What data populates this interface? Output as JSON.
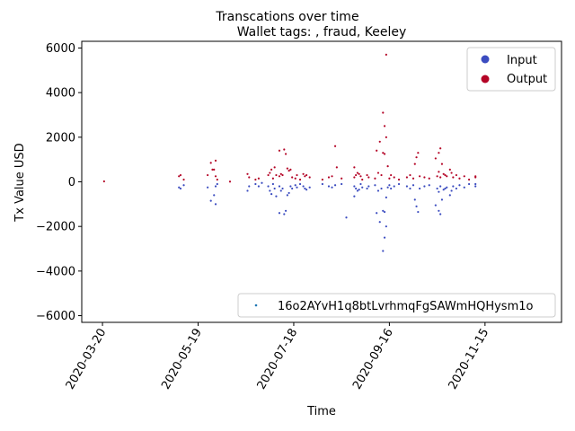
{
  "chart_data": {
    "type": "scatter",
    "suptitle": "Transcations over time",
    "title": "Wallet tags: , fraud, Keeley",
    "xlabel": "Time",
    "ylabel": "Tx Value USD",
    "x_range": [
      "2020-03-07",
      "2021-01-02"
    ],
    "ylim": [
      -6300,
      6300
    ],
    "y_ticks": [
      -6000,
      -4000,
      -2000,
      0,
      2000,
      4000,
      6000
    ],
    "x_ticks": [
      "2020-03-20",
      "2020-05-19",
      "2020-07-18",
      "2020-09-16",
      "2020-11-15"
    ],
    "grid": false,
    "legend_top": {
      "placement": "upper right",
      "entries": [
        {
          "label": "Input",
          "color": "#3b4cc0"
        },
        {
          "label": "Output",
          "color": "#b40426"
        }
      ]
    },
    "legend_bottom": {
      "placement": "lower right",
      "entries": [
        {
          "label": "16o2AYvH1q8btLvrhmqFgSAWmHQHysm1o",
          "color": "#1f77b4"
        }
      ]
    },
    "series": [
      {
        "name": "Input",
        "color": "#3b4cc0",
        "points": [
          [
            "2020-05-07",
            -250
          ],
          [
            "2020-05-08",
            -300
          ],
          [
            "2020-05-10",
            -150
          ],
          [
            "2020-05-25",
            -250
          ],
          [
            "2020-05-27",
            -850
          ],
          [
            "2020-05-29",
            -600
          ],
          [
            "2020-05-30",
            -1000
          ],
          [
            "2020-05-30",
            -200
          ],
          [
            "2020-05-31",
            -100
          ],
          [
            "2020-06-19",
            -400
          ],
          [
            "2020-06-20",
            -200
          ],
          [
            "2020-06-24",
            -100
          ],
          [
            "2020-06-26",
            -200
          ],
          [
            "2020-06-28",
            -50
          ],
          [
            "2020-07-02",
            -200
          ],
          [
            "2020-07-03",
            -400
          ],
          [
            "2020-07-04",
            -550
          ],
          [
            "2020-07-05",
            -100
          ],
          [
            "2020-07-06",
            -300
          ],
          [
            "2020-07-07",
            -650
          ],
          [
            "2020-07-09",
            -1400
          ],
          [
            "2020-07-09",
            -200
          ],
          [
            "2020-07-10",
            -400
          ],
          [
            "2020-07-11",
            -300
          ],
          [
            "2020-07-12",
            -1450
          ],
          [
            "2020-07-13",
            -1300
          ],
          [
            "2020-07-14",
            -600
          ],
          [
            "2020-07-15",
            -500
          ],
          [
            "2020-07-16",
            -200
          ],
          [
            "2020-07-17",
            -300
          ],
          [
            "2020-07-19",
            -150
          ],
          [
            "2020-07-20",
            -250
          ],
          [
            "2020-07-22",
            -100
          ],
          [
            "2020-07-24",
            -200
          ],
          [
            "2020-07-25",
            -300
          ],
          [
            "2020-07-26",
            -350
          ],
          [
            "2020-07-28",
            -250
          ],
          [
            "2020-08-05",
            -100
          ],
          [
            "2020-08-09",
            -200
          ],
          [
            "2020-08-11",
            -250
          ],
          [
            "2020-08-13",
            -150
          ],
          [
            "2020-08-17",
            -100
          ],
          [
            "2020-08-20",
            -1600
          ],
          [
            "2020-08-25",
            -200
          ],
          [
            "2020-08-25",
            -650
          ],
          [
            "2020-08-26",
            -300
          ],
          [
            "2020-08-27",
            -400
          ],
          [
            "2020-08-28",
            -350
          ],
          [
            "2020-08-29",
            -100
          ],
          [
            "2020-08-30",
            -250
          ],
          [
            "2020-09-02",
            -300
          ],
          [
            "2020-09-03",
            -200
          ],
          [
            "2020-09-07",
            -150
          ],
          [
            "2020-09-08",
            -1400
          ],
          [
            "2020-09-09",
            -400
          ],
          [
            "2020-09-10",
            -1800
          ],
          [
            "2020-09-11",
            -300
          ],
          [
            "2020-09-12",
            -3100
          ],
          [
            "2020-09-12",
            -1300
          ],
          [
            "2020-09-13",
            -1350
          ],
          [
            "2020-09-13",
            -2500
          ],
          [
            "2020-09-14",
            -2000
          ],
          [
            "2020-09-14",
            -700
          ],
          [
            "2020-09-15",
            -250
          ],
          [
            "2020-09-16",
            -150
          ],
          [
            "2020-09-17",
            -300
          ],
          [
            "2020-09-19",
            -200
          ],
          [
            "2020-09-22",
            -100
          ],
          [
            "2020-09-27",
            -200
          ],
          [
            "2020-09-29",
            -300
          ],
          [
            "2020-10-01",
            -150
          ],
          [
            "2020-10-02",
            -800
          ],
          [
            "2020-10-03",
            -1100
          ],
          [
            "2020-10-04",
            -1350
          ],
          [
            "2020-10-05",
            -300
          ],
          [
            "2020-10-08",
            -200
          ],
          [
            "2020-10-11",
            -150
          ],
          [
            "2020-10-15",
            -1050
          ],
          [
            "2020-10-16",
            -300
          ],
          [
            "2020-10-17",
            -450
          ],
          [
            "2020-10-17",
            -1300
          ],
          [
            "2020-10-18",
            -1450
          ],
          [
            "2020-10-18",
            -200
          ],
          [
            "2020-10-19",
            -800
          ],
          [
            "2020-10-20",
            -350
          ],
          [
            "2020-10-21",
            -300
          ],
          [
            "2020-10-22",
            -250
          ],
          [
            "2020-10-24",
            -600
          ],
          [
            "2020-10-25",
            -400
          ],
          [
            "2020-10-26",
            -200
          ],
          [
            "2020-10-28",
            -300
          ],
          [
            "2020-10-30",
            -150
          ],
          [
            "2020-11-02",
            -250
          ],
          [
            "2020-11-05",
            -100
          ],
          [
            "2020-11-09",
            -200
          ],
          [
            "2020-11-09",
            -100
          ]
        ]
      },
      {
        "name": "Output",
        "color": "#b40426",
        "points": [
          [
            "2020-03-21",
            20
          ],
          [
            "2020-05-07",
            250
          ],
          [
            "2020-05-08",
            300
          ],
          [
            "2020-05-10",
            100
          ],
          [
            "2020-05-25",
            300
          ],
          [
            "2020-05-27",
            850
          ],
          [
            "2020-05-28",
            550
          ],
          [
            "2020-05-29",
            550
          ],
          [
            "2020-05-30",
            950
          ],
          [
            "2020-05-30",
            250
          ],
          [
            "2020-05-31",
            100
          ],
          [
            "2020-06-08",
            10
          ],
          [
            "2020-06-19",
            350
          ],
          [
            "2020-06-20",
            200
          ],
          [
            "2020-06-24",
            100
          ],
          [
            "2020-06-26",
            150
          ],
          [
            "2020-07-02",
            300
          ],
          [
            "2020-07-03",
            400
          ],
          [
            "2020-07-04",
            550
          ],
          [
            "2020-07-05",
            150
          ],
          [
            "2020-07-06",
            650
          ],
          [
            "2020-07-07",
            300
          ],
          [
            "2020-07-09",
            1400
          ],
          [
            "2020-07-09",
            250
          ],
          [
            "2020-07-10",
            350
          ],
          [
            "2020-07-11",
            300
          ],
          [
            "2020-07-12",
            1450
          ],
          [
            "2020-07-13",
            1250
          ],
          [
            "2020-07-14",
            600
          ],
          [
            "2020-07-15",
            500
          ],
          [
            "2020-07-16",
            550
          ],
          [
            "2020-07-17",
            200
          ],
          [
            "2020-07-19",
            150
          ],
          [
            "2020-07-20",
            300
          ],
          [
            "2020-07-22",
            100
          ],
          [
            "2020-07-24",
            350
          ],
          [
            "2020-07-25",
            250
          ],
          [
            "2020-07-26",
            300
          ],
          [
            "2020-07-28",
            200
          ],
          [
            "2020-08-05",
            100
          ],
          [
            "2020-08-09",
            200
          ],
          [
            "2020-08-11",
            250
          ],
          [
            "2020-08-13",
            1600
          ],
          [
            "2020-08-14",
            650
          ],
          [
            "2020-08-17",
            150
          ],
          [
            "2020-08-25",
            650
          ],
          [
            "2020-08-25",
            200
          ],
          [
            "2020-08-26",
            300
          ],
          [
            "2020-08-27",
            400
          ],
          [
            "2020-08-28",
            350
          ],
          [
            "2020-08-29",
            250
          ],
          [
            "2020-08-30",
            100
          ],
          [
            "2020-09-02",
            300
          ],
          [
            "2020-09-03",
            200
          ],
          [
            "2020-09-07",
            150
          ],
          [
            "2020-09-08",
            1400
          ],
          [
            "2020-09-09",
            400
          ],
          [
            "2020-09-10",
            1800
          ],
          [
            "2020-09-11",
            300
          ],
          [
            "2020-09-12",
            3100
          ],
          [
            "2020-09-12",
            1300
          ],
          [
            "2020-09-13",
            2500
          ],
          [
            "2020-09-13",
            1250
          ],
          [
            "2020-09-14",
            2000
          ],
          [
            "2020-09-14",
            5700
          ],
          [
            "2020-09-15",
            700
          ],
          [
            "2020-09-16",
            150
          ],
          [
            "2020-09-17",
            300
          ],
          [
            "2020-09-19",
            200
          ],
          [
            "2020-09-22",
            100
          ],
          [
            "2020-09-27",
            200
          ],
          [
            "2020-09-29",
            300
          ],
          [
            "2020-10-01",
            150
          ],
          [
            "2020-10-02",
            800
          ],
          [
            "2020-10-03",
            1100
          ],
          [
            "2020-10-04",
            1300
          ],
          [
            "2020-10-05",
            250
          ],
          [
            "2020-10-08",
            200
          ],
          [
            "2020-10-11",
            150
          ],
          [
            "2020-10-15",
            1050
          ],
          [
            "2020-10-16",
            250
          ],
          [
            "2020-10-17",
            450
          ],
          [
            "2020-10-17",
            1300
          ],
          [
            "2020-10-18",
            1500
          ],
          [
            "2020-10-18",
            200
          ],
          [
            "2020-10-19",
            800
          ],
          [
            "2020-10-20",
            350
          ],
          [
            "2020-10-21",
            300
          ],
          [
            "2020-10-22",
            250
          ],
          [
            "2020-10-24",
            550
          ],
          [
            "2020-10-25",
            400
          ],
          [
            "2020-10-26",
            200
          ],
          [
            "2020-10-28",
            300
          ],
          [
            "2020-10-30",
            150
          ],
          [
            "2020-11-02",
            250
          ],
          [
            "2020-11-05",
            100
          ],
          [
            "2020-11-09",
            200
          ],
          [
            "2020-11-09",
            250
          ]
        ]
      }
    ]
  }
}
